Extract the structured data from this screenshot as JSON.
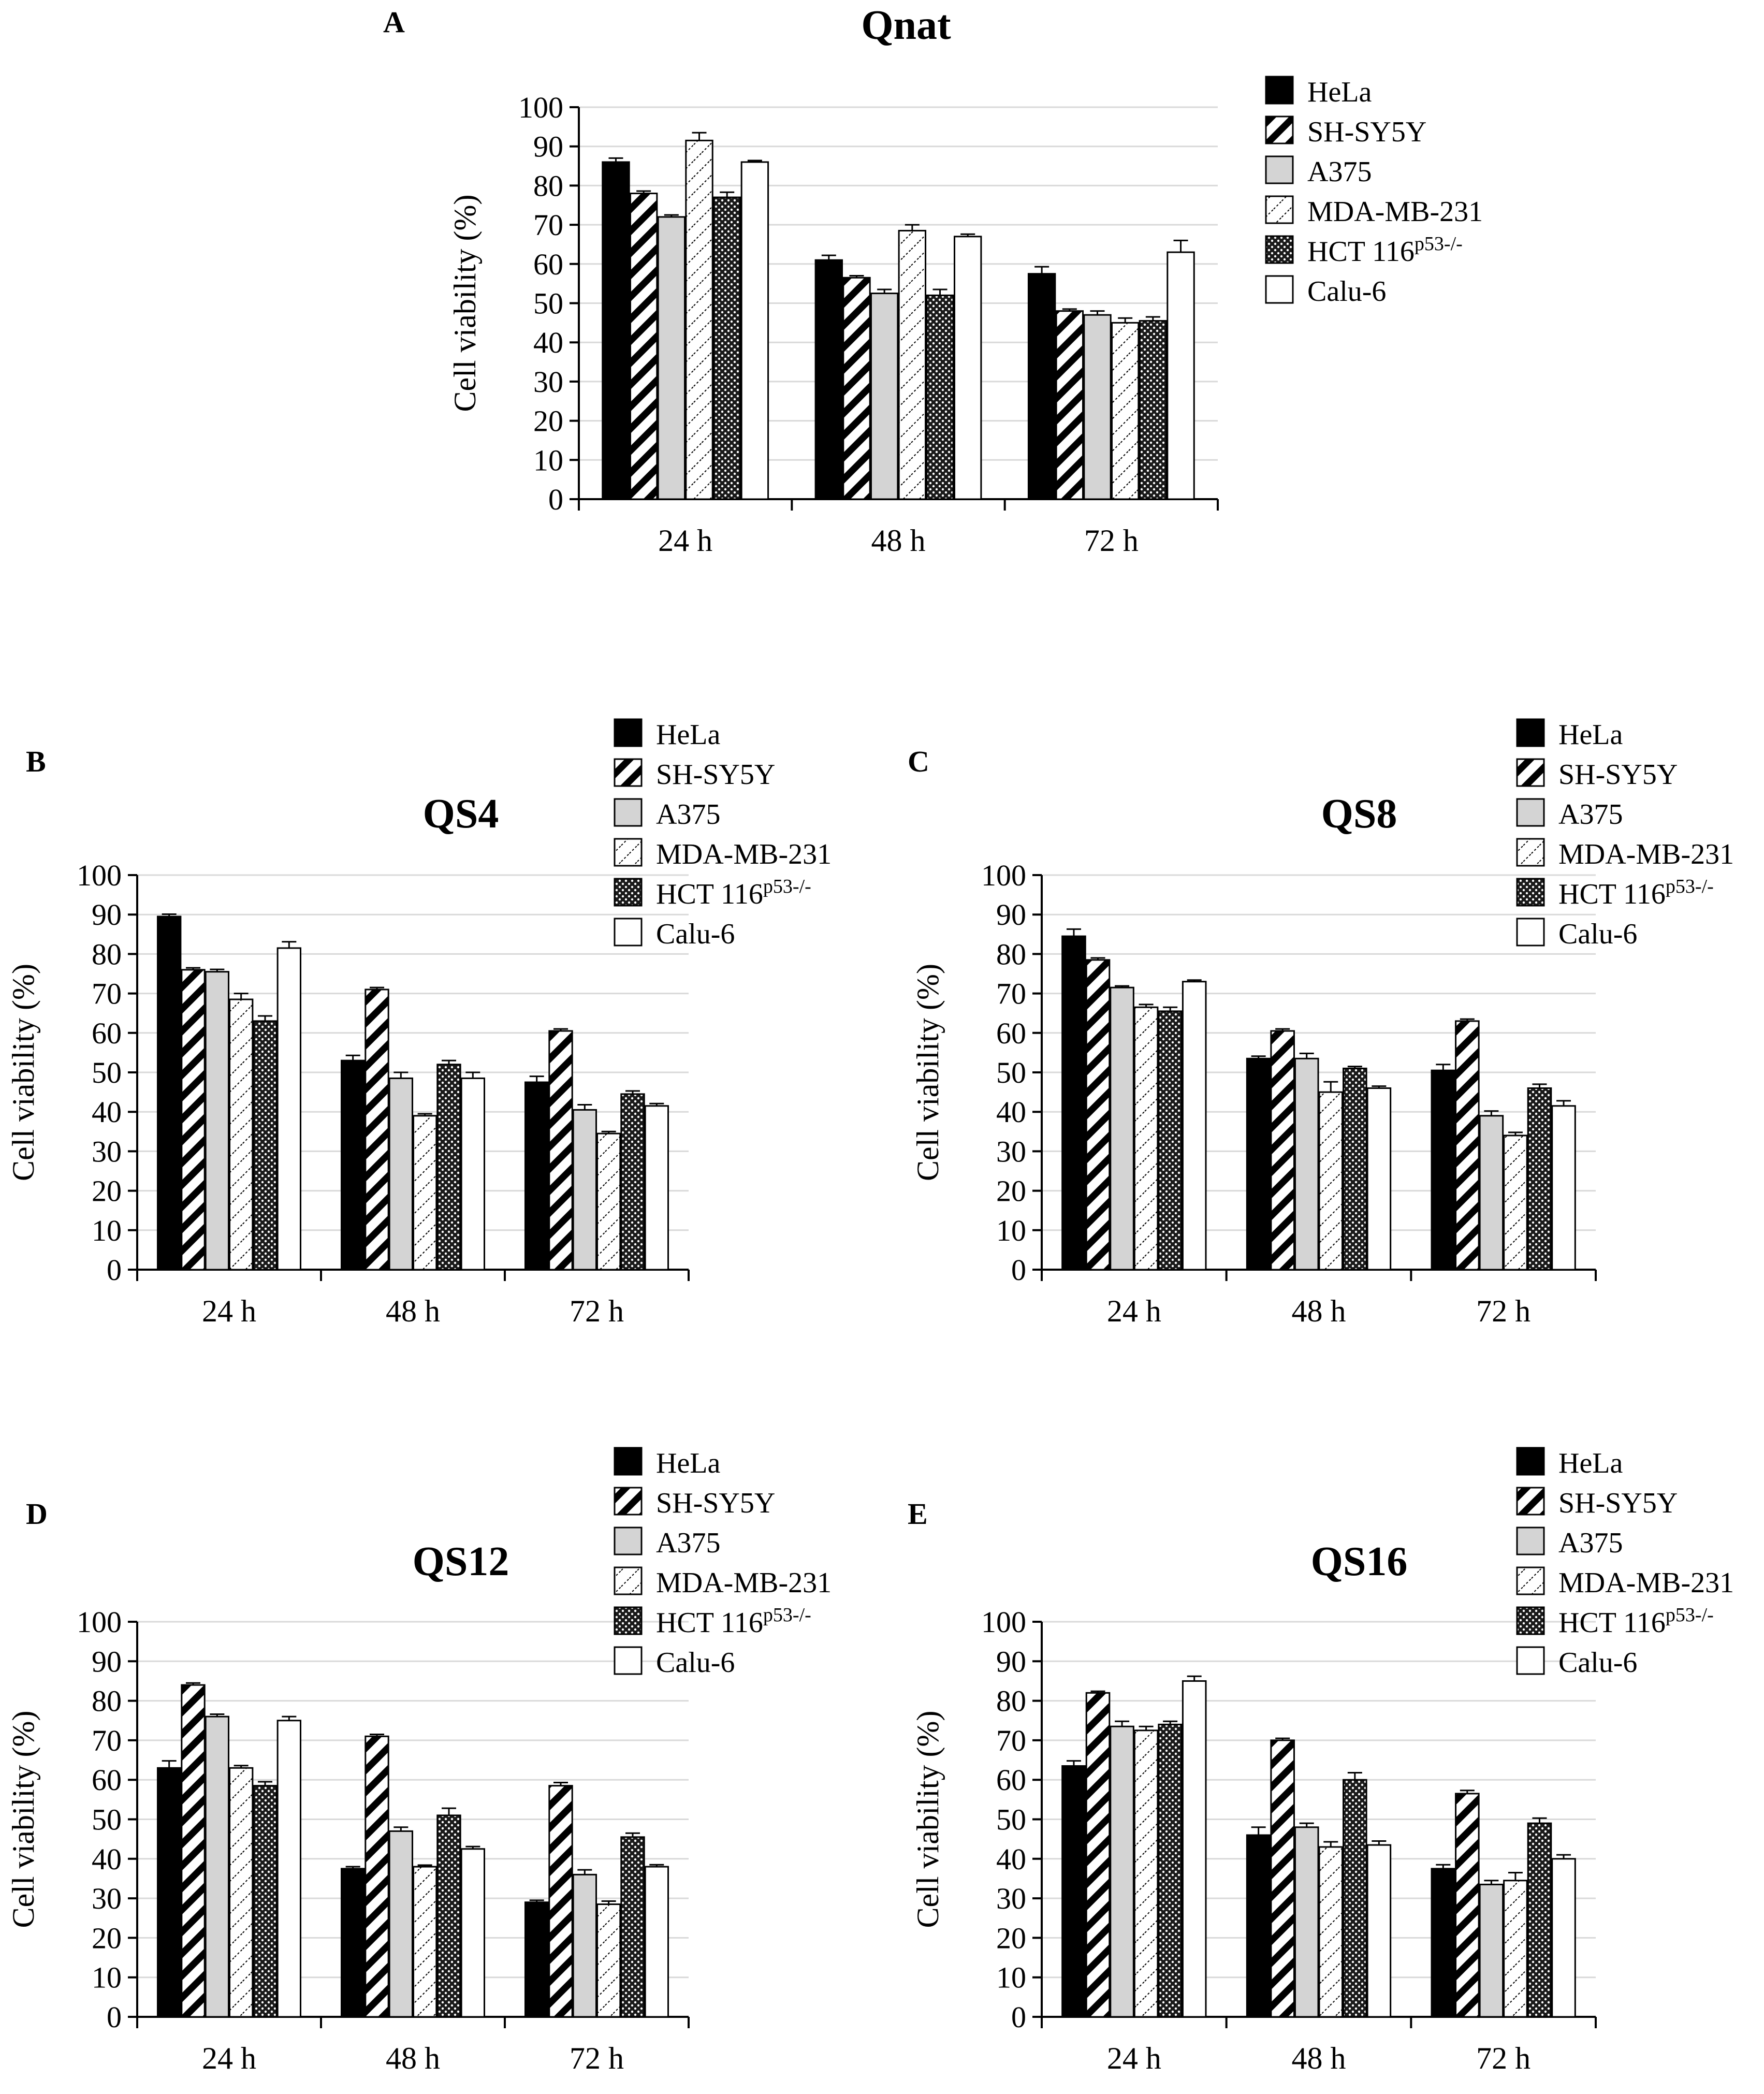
{
  "figure": {
    "series_names": [
      "HeLa",
      "SH-SY5Y",
      "A375",
      "MDA-MB-231",
      "HCT 116",
      "Calu-6"
    ],
    "series_superscripts": [
      "",
      "",
      "",
      "",
      "p53-/-",
      ""
    ],
    "series_patterns": [
      "solid-black",
      "diagonal-thick",
      "solid-light-gray",
      "diagonal-dotted",
      "checker-dots",
      "solid-white"
    ],
    "colors": {
      "bar_outline": "#000000",
      "light_gray": "#d4d4d4",
      "gridline": "#d9d9d9"
    }
  },
  "chart_data": [
    {
      "panel": "A",
      "type": "bar",
      "title": "Qnat",
      "ylabel": "Cell viability (%)",
      "xlabel": "",
      "categories": [
        "24 h",
        "48 h",
        "72 h"
      ],
      "ylim": [
        0,
        100
      ],
      "yticks": [
        0,
        10,
        20,
        30,
        40,
        50,
        60,
        70,
        80,
        90,
        100
      ],
      "grid": true,
      "legend": "right",
      "series": [
        {
          "name": "HeLa",
          "values": [
            86,
            61,
            57.5
          ],
          "errors": [
            1,
            1.2,
            1.8
          ]
        },
        {
          "name": "SH-SY5Y",
          "values": [
            78,
            56.5,
            48
          ],
          "errors": [
            0.6,
            0.5,
            0.5
          ]
        },
        {
          "name": "A375",
          "values": [
            72,
            52.5,
            47
          ],
          "errors": [
            0.5,
            1,
            1
          ]
        },
        {
          "name": "MDA-MB-231",
          "values": [
            91.5,
            68.5,
            45
          ],
          "errors": [
            2,
            1.5,
            1.2
          ]
        },
        {
          "name": "HCT 116",
          "values": [
            77,
            52,
            45.5
          ],
          "errors": [
            1.3,
            1.5,
            1
          ]
        },
        {
          "name": "Calu-6",
          "values": [
            86,
            67,
            63
          ],
          "errors": [
            0.4,
            0.6,
            3
          ]
        }
      ]
    },
    {
      "panel": "B",
      "type": "bar",
      "title": "QS4",
      "ylabel": "Cell viability (%)",
      "xlabel": "",
      "categories": [
        "24 h",
        "48 h",
        "72 h"
      ],
      "ylim": [
        0,
        100
      ],
      "yticks": [
        0,
        10,
        20,
        30,
        40,
        50,
        60,
        70,
        80,
        90,
        100
      ],
      "grid": true,
      "legend": "top-right",
      "series": [
        {
          "name": "HeLa",
          "values": [
            89.5,
            53,
            47.5
          ],
          "errors": [
            0.6,
            1.3,
            1.5
          ]
        },
        {
          "name": "SH-SY5Y",
          "values": [
            76,
            71,
            60.5
          ],
          "errors": [
            0.5,
            0.5,
            0.5
          ]
        },
        {
          "name": "A375",
          "values": [
            75.5,
            48.5,
            40.5
          ],
          "errors": [
            0.6,
            1.5,
            1.3
          ]
        },
        {
          "name": "MDA-MB-231",
          "values": [
            68.5,
            39,
            34.5
          ],
          "errors": [
            1.5,
            0.5,
            0.5
          ]
        },
        {
          "name": "HCT 116",
          "values": [
            63,
            52,
            44.5
          ],
          "errors": [
            1.3,
            1,
            0.8
          ]
        },
        {
          "name": "Calu-6",
          "values": [
            81.5,
            48.5,
            41.5
          ],
          "errors": [
            1.6,
            1.5,
            0.6
          ]
        }
      ]
    },
    {
      "panel": "C",
      "type": "bar",
      "title": "QS8",
      "ylabel": "Cell viability (%)",
      "xlabel": "",
      "categories": [
        "24 h",
        "48 h",
        "72 h"
      ],
      "ylim": [
        0,
        100
      ],
      "yticks": [
        0,
        10,
        20,
        30,
        40,
        50,
        60,
        70,
        80,
        90,
        100
      ],
      "grid": true,
      "legend": "top-right",
      "series": [
        {
          "name": "HeLa",
          "values": [
            84.5,
            53.5,
            50.5
          ],
          "errors": [
            1.8,
            0.6,
            1.5
          ]
        },
        {
          "name": "SH-SY5Y",
          "values": [
            78.5,
            60.5,
            63
          ],
          "errors": [
            0.5,
            0.5,
            0.5
          ]
        },
        {
          "name": "A375",
          "values": [
            71.5,
            53.5,
            39
          ],
          "errors": [
            0.4,
            1.3,
            1.2
          ]
        },
        {
          "name": "MDA-MB-231",
          "values": [
            66.5,
            45,
            34
          ],
          "errors": [
            0.7,
            2.6,
            0.8
          ]
        },
        {
          "name": "HCT 116",
          "values": [
            65.5,
            51,
            46
          ],
          "errors": [
            1,
            0.5,
            1
          ]
        },
        {
          "name": "Calu-6",
          "values": [
            73,
            46,
            41.5
          ],
          "errors": [
            0.4,
            0.5,
            1.3
          ]
        }
      ]
    },
    {
      "panel": "D",
      "type": "bar",
      "title": "QS12",
      "ylabel": "Cell viability (%)",
      "xlabel": "",
      "categories": [
        "24 h",
        "48 h",
        "72 h"
      ],
      "ylim": [
        0,
        100
      ],
      "yticks": [
        0,
        10,
        20,
        30,
        40,
        50,
        60,
        70,
        80,
        90,
        100
      ],
      "grid": true,
      "legend": "top-right",
      "series": [
        {
          "name": "HeLa",
          "values": [
            63,
            37.5,
            29
          ],
          "errors": [
            1.8,
            0.5,
            0.5
          ]
        },
        {
          "name": "SH-SY5Y",
          "values": [
            84,
            71,
            58.5
          ],
          "errors": [
            0.5,
            0.5,
            0.8
          ]
        },
        {
          "name": "A375",
          "values": [
            76,
            47,
            36
          ],
          "errors": [
            0.6,
            1,
            1.2
          ]
        },
        {
          "name": "MDA-MB-231",
          "values": [
            63,
            38,
            28.5
          ],
          "errors": [
            0.6,
            0.4,
            0.8
          ]
        },
        {
          "name": "HCT 116",
          "values": [
            58.5,
            51,
            45.5
          ],
          "errors": [
            1,
            1.8,
            1
          ]
        },
        {
          "name": "Calu-6",
          "values": [
            75,
            42.5,
            38
          ],
          "errors": [
            1,
            0.6,
            0.5
          ]
        }
      ]
    },
    {
      "panel": "E",
      "type": "bar",
      "title": "QS16",
      "ylabel": "Cell viability (%)",
      "xlabel": "",
      "categories": [
        "24 h",
        "48 h",
        "72 h"
      ],
      "ylim": [
        0,
        100
      ],
      "yticks": [
        0,
        10,
        20,
        30,
        40,
        50,
        60,
        70,
        80,
        90,
        100
      ],
      "grid": true,
      "legend": "top-right",
      "series": [
        {
          "name": "HeLa",
          "values": [
            63.5,
            46,
            37.5
          ],
          "errors": [
            1.3,
            2,
            1
          ]
        },
        {
          "name": "SH-SY5Y",
          "values": [
            82,
            70,
            56.5
          ],
          "errors": [
            0.4,
            0.5,
            0.8
          ]
        },
        {
          "name": "A375",
          "values": [
            73.5,
            48,
            33.5
          ],
          "errors": [
            1.3,
            1,
            1
          ]
        },
        {
          "name": "MDA-MB-231",
          "values": [
            72.5,
            43,
            34.5
          ],
          "errors": [
            1,
            1.3,
            2
          ]
        },
        {
          "name": "HCT 116",
          "values": [
            74,
            60,
            49
          ],
          "errors": [
            0.8,
            1.8,
            1.3
          ]
        },
        {
          "name": "Calu-6",
          "values": [
            85,
            43.5,
            40
          ],
          "errors": [
            1.2,
            1,
            1
          ]
        }
      ]
    }
  ]
}
